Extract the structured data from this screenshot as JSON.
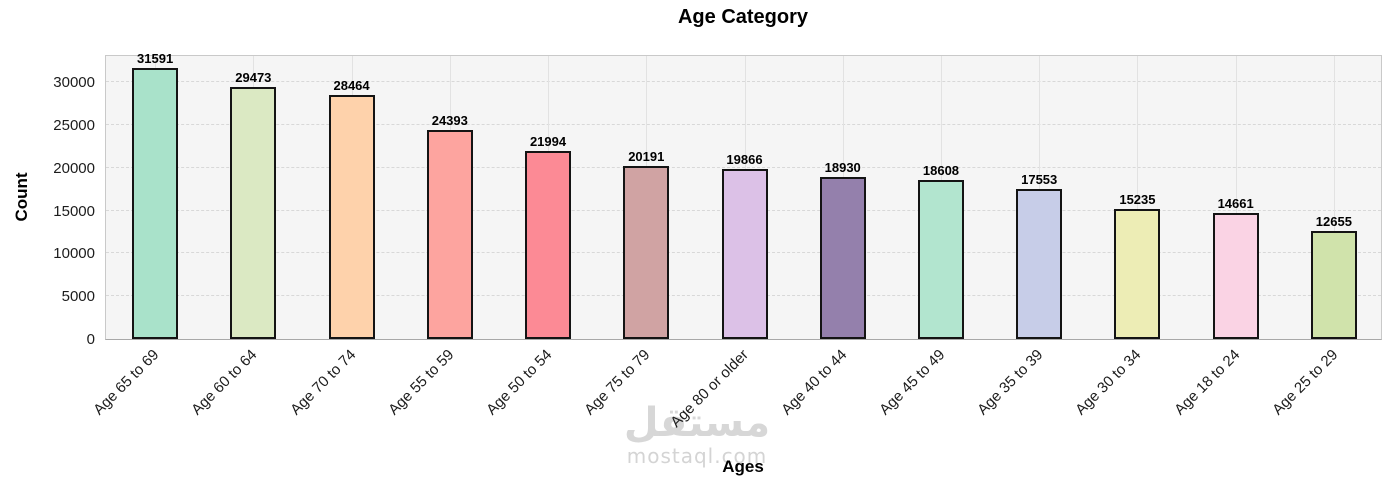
{
  "watermark": {
    "arabic": "مستقل",
    "latin": "mostaql.com"
  },
  "chart_data": {
    "type": "bar",
    "title": "Age Category",
    "xlabel": "Ages",
    "ylabel": "Count",
    "categories": [
      "Age 65 to 69",
      "Age 60 to 64",
      "Age 70 to 74",
      "Age 55 to 59",
      "Age 50 to 54",
      "Age 75 to 79",
      "Age 80 or older",
      "Age 40 to 44",
      "Age 45 to 49",
      "Age 35 to 39",
      "Age 30 to 34",
      "Age 18 to 24",
      "Age 25 to 29"
    ],
    "values": [
      31591,
      29473,
      28464,
      24393,
      21994,
      20191,
      19866,
      18930,
      18608,
      17553,
      15235,
      14661,
      12655
    ],
    "bar_colors": [
      "#a9e2ca",
      "#dbe9c3",
      "#fed2ab",
      "#fda49f",
      "#fc8a95",
      "#d0a3a3",
      "#dcc1e7",
      "#9480ac",
      "#b2e5cf",
      "#c7cde8",
      "#ededb5",
      "#fad3e4",
      "#d0e3ab"
    ],
    "bar_edge_color": "#141414",
    "yticks": [
      0,
      5000,
      10000,
      15000,
      20000,
      25000,
      30000
    ],
    "ylim": [
      0,
      33270
    ],
    "grid": {
      "horizontal": "dashed",
      "vertical": "solid"
    },
    "legend": "none",
    "plot_bg": "#f5f5f5",
    "value_labels": "above-bars"
  }
}
